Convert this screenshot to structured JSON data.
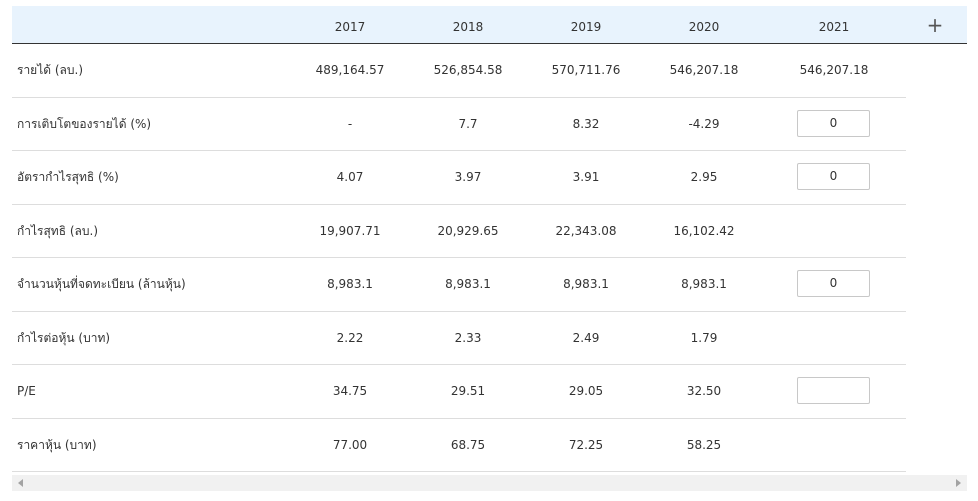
{
  "header": {
    "years": [
      "2017",
      "2018",
      "2019",
      "2020",
      "2021"
    ],
    "add_column_label": "+"
  },
  "rows": [
    {
      "label": "รายได้ (ลบ.)",
      "values": [
        "489,164.57",
        "526,854.58",
        "570,711.76",
        "546,207.18"
      ],
      "col2021": {
        "type": "text",
        "value": "546,207.18"
      }
    },
    {
      "label": "การเติบโตของรายได้ (%)",
      "values": [
        "-",
        "7.7",
        "8.32",
        "-4.29"
      ],
      "col2021": {
        "type": "input",
        "value": "0"
      }
    },
    {
      "label": "อัตรากำไรสุทธิ (%)",
      "values": [
        "4.07",
        "3.97",
        "3.91",
        "2.95"
      ],
      "col2021": {
        "type": "input",
        "value": "0"
      }
    },
    {
      "label": "กำไรสุทธิ (ลบ.)",
      "values": [
        "19,907.71",
        "20,929.65",
        "22,343.08",
        "16,102.42"
      ],
      "col2021": {
        "type": "text",
        "value": ""
      }
    },
    {
      "label": "จำนวนหุ้นที่จดทะเบียน (ล้านหุ้น)",
      "values": [
        "8,983.1",
        "8,983.1",
        "8,983.1",
        "8,983.1"
      ],
      "col2021": {
        "type": "input",
        "value": "0"
      }
    },
    {
      "label": "กำไรต่อหุ้น (บาท)",
      "values": [
        "2.22",
        "2.33",
        "2.49",
        "1.79"
      ],
      "col2021": {
        "type": "text",
        "value": ""
      }
    },
    {
      "label": "P/E",
      "values": [
        "34.75",
        "29.51",
        "29.05",
        "32.50"
      ],
      "col2021": {
        "type": "input",
        "value": ""
      }
    },
    {
      "label": "ราคาหุ้น (บาท)",
      "values": [
        "77.00",
        "68.75",
        "72.25",
        "58.25"
      ],
      "col2021": {
        "type": "text",
        "value": ""
      }
    }
  ],
  "scrollbar": {
    "left_arrow": "scroll-left-arrow",
    "right_arrow": "scroll-right-arrow"
  }
}
